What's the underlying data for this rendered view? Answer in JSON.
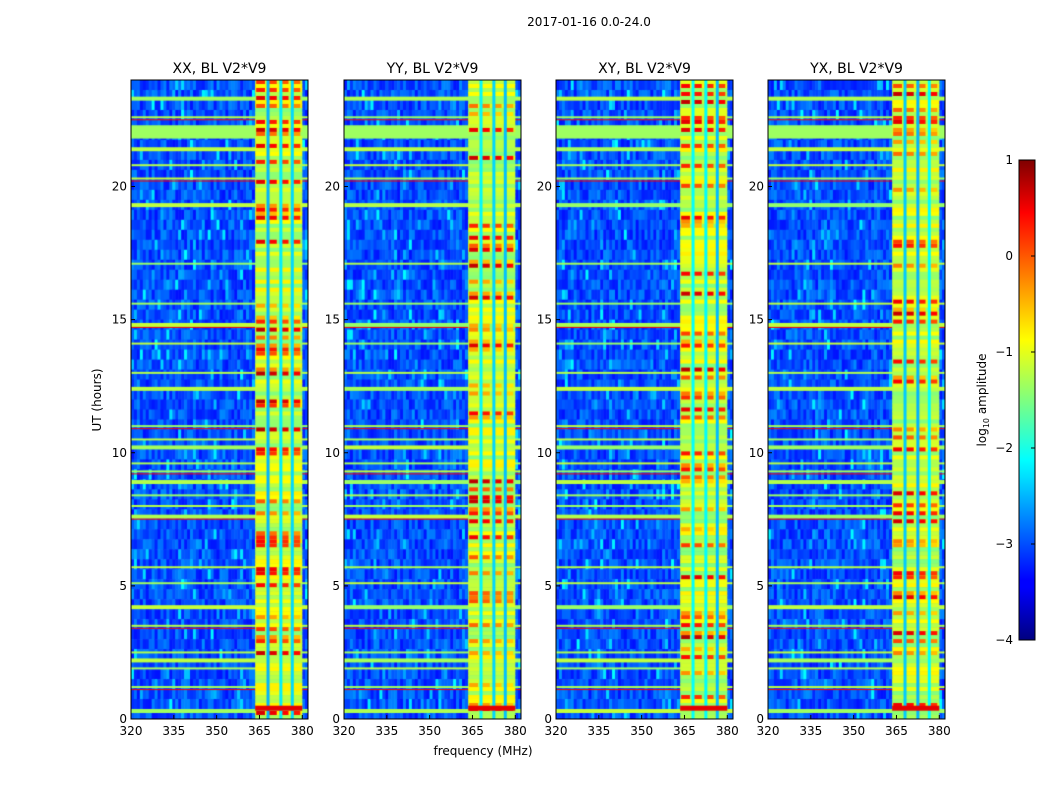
{
  "chart_data": {
    "type": "heatmap",
    "suptitle": "2017-01-16 0.0-24.0",
    "panels": [
      {
        "title": "XX, BL V2*V9"
      },
      {
        "title": "YY, BL V2*V9"
      },
      {
        "title": "XY, BL V2*V9"
      },
      {
        "title": "YX, BL V2*V9"
      }
    ],
    "xlabel": "frequency (MHz)",
    "ylabel": "UT (hours)",
    "xlim": [
      320,
      382
    ],
    "ylim": [
      0,
      24
    ],
    "xticks": [
      320,
      335,
      350,
      365,
      380
    ],
    "yticks": [
      0,
      5,
      10,
      15,
      20
    ],
    "colorbar": {
      "label_main": "log",
      "label_sub": "10",
      "label_rest": " amplitude",
      "range": [
        -4,
        1
      ],
      "ticks": [
        "1",
        "0",
        "−1",
        "−2",
        "−3",
        "−4"
      ],
      "tick_values": [
        1,
        0,
        -1,
        -2,
        -3,
        -4
      ],
      "colormap": "jet"
    },
    "rfi_band_mhz": [
      363.5,
      380
    ],
    "rfi_channel_gaps_mhz": [
      368.0,
      372.5,
      376.5
    ],
    "horizontal_flag_hours": [
      0.3,
      1.2,
      1.9,
      2.2,
      2.5,
      3.5,
      4.2,
      5.1,
      5.7,
      7.6,
      8.0,
      8.4,
      8.9,
      9.3,
      9.6,
      10.2,
      10.5,
      11.0,
      12.4,
      13.0,
      14.1,
      14.8,
      15.6,
      17.1,
      19.3,
      20.3,
      20.8,
      21.4,
      22.0,
      22.6,
      23.3
    ]
  }
}
